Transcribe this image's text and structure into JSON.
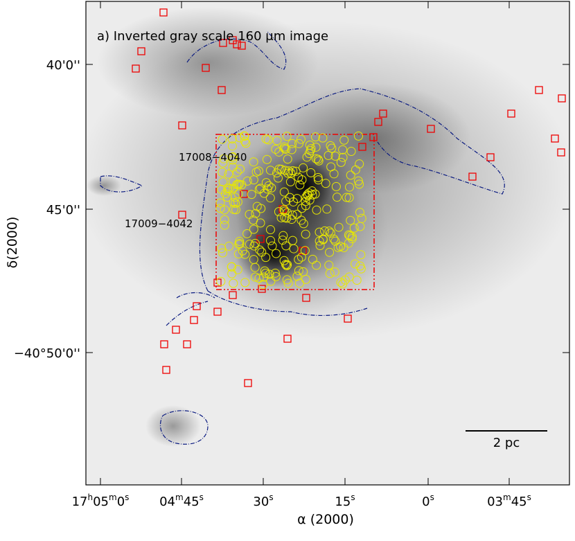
{
  "figure": {
    "panel_title": "a) Inverted gray scale 160 μm image",
    "x_label": "α (2000)",
    "y_label": "δ(2000)",
    "x_ticks": [
      [
        "17",
        "h",
        "05",
        "m",
        "0",
        "s"
      ],
      [
        "04",
        "m",
        "45",
        "s"
      ],
      [
        "30",
        "s"
      ],
      [
        "15",
        "s"
      ],
      [
        "0",
        "s"
      ],
      [
        "03",
        "m",
        "45",
        "s"
      ]
    ],
    "y_ticks": [
      "40'0''",
      "45'0''",
      "−40°50'0''"
    ],
    "sources": [
      "17008−4040",
      "17009−4042"
    ],
    "scale_bar": "2 pc"
  }
}
